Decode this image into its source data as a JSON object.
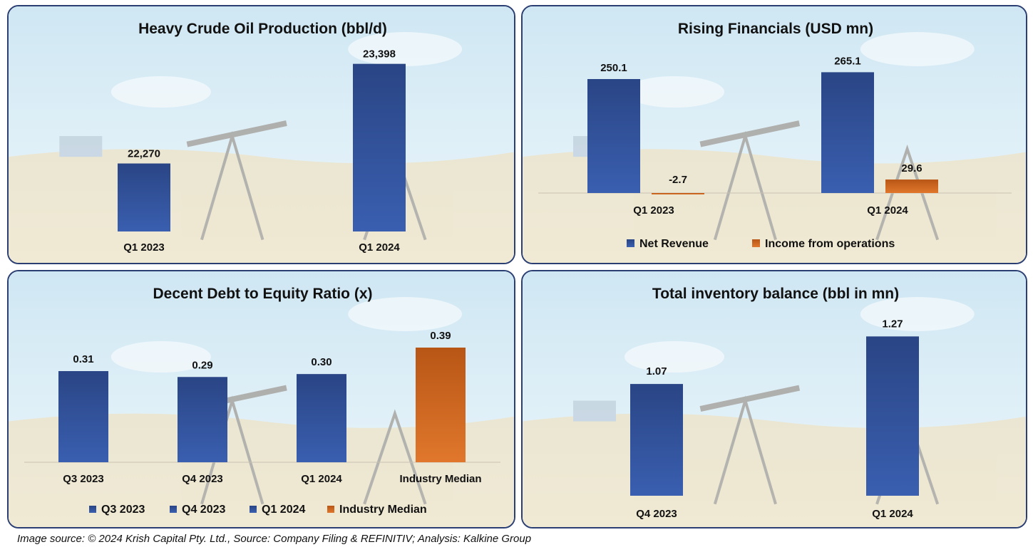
{
  "caption": "Image source: © 2024 Krish Capital Pty. Ltd., Source: Company Filing & REFINITIV; Analysis: Kalkine Group",
  "colors": {
    "bar_blue": "#3a5fb0",
    "bar_blue_dark": "#2a4585",
    "bar_orange": "#e0772c",
    "bar_orange_dark": "#b85616",
    "border": "#2b3f73",
    "sky": "#d8ecf5",
    "sand": "#f3dfb4"
  },
  "chart_data": [
    {
      "type": "bar",
      "title": "Heavy Crude Oil Production (bbl/d)",
      "categories": [
        "Q1 2023",
        "Q1 2024"
      ],
      "values": [
        22270,
        23398
      ],
      "labels": [
        "22,270",
        "23,398"
      ],
      "ylim": [
        21500,
        23500
      ],
      "color": "blue"
    },
    {
      "type": "bar",
      "title": "Rising Financials (USD mn)",
      "categories": [
        "Q1 2023",
        "Q1 2024"
      ],
      "series": [
        {
          "name": "Net Revenue",
          "values": [
            250.1,
            265.1
          ],
          "labels": [
            "250.1",
            "265.1"
          ],
          "color": "blue"
        },
        {
          "name": "Income from operations",
          "values": [
            -2.7,
            29.6
          ],
          "labels": [
            "-2.7",
            "29.6"
          ],
          "color": "orange"
        }
      ],
      "ylim": [
        -5,
        270
      ],
      "legend": [
        "Net Revenue",
        "Income from operations"
      ]
    },
    {
      "type": "bar",
      "title": "Decent Debt to Equity Ratio (x)",
      "categories": [
        "Q3 2023",
        "Q4 2023",
        "Q1 2024",
        "Industry Median"
      ],
      "values": [
        0.31,
        0.29,
        0.3,
        0.39
      ],
      "labels": [
        "0.31",
        "0.29",
        "0.30",
        "0.39"
      ],
      "colors": [
        "blue",
        "blue",
        "blue",
        "orange"
      ],
      "ylim": [
        0,
        0.4
      ],
      "legend": [
        "Q3 2023",
        "Q4 2023",
        "Q1 2024",
        "Industry Median"
      ]
    },
    {
      "type": "bar",
      "title": "Total inventory balance (bbl in mn)",
      "categories": [
        "Q4 2023",
        "Q1 2024"
      ],
      "values": [
        1.07,
        1.27
      ],
      "labels": [
        "1.07",
        "1.27"
      ],
      "ylim": [
        0.6,
        1.28
      ],
      "color": "blue"
    }
  ]
}
